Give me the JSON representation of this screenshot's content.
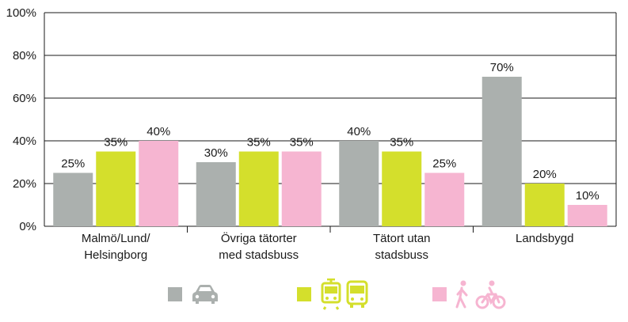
{
  "chart_data": {
    "type": "bar",
    "categories": [
      [
        "Malmö/Lund/",
        "Helsingborg"
      ],
      [
        "Övriga tätorter",
        "med stadsbuss"
      ],
      [
        "Tätort utan",
        "stadsbuss"
      ],
      [
        "Landsbygd"
      ]
    ],
    "series": [
      {
        "values": [
          25,
          30,
          40,
          70
        ],
        "labels": [
          "25%",
          "30%",
          "40%",
          "70%"
        ],
        "color": "#abb0ae",
        "icon": "car-icon"
      },
      {
        "values": [
          35,
          35,
          35,
          20
        ],
        "labels": [
          "35%",
          "35%",
          "35%",
          "20%"
        ],
        "color": "#d4df2c",
        "icon": "tram-bus-icon"
      },
      {
        "values": [
          40,
          35,
          25,
          10
        ],
        "labels": [
          "40%",
          "35%",
          "25%",
          "10%"
        ],
        "color": "#f6b5d1",
        "icon": "walk-bike-icon"
      }
    ],
    "yticks": [
      "0%",
      "20%",
      "40%",
      "60%",
      "80%",
      "100%"
    ],
    "ylim": [
      0,
      100
    ],
    "grid": true,
    "legend": "bottom"
  }
}
